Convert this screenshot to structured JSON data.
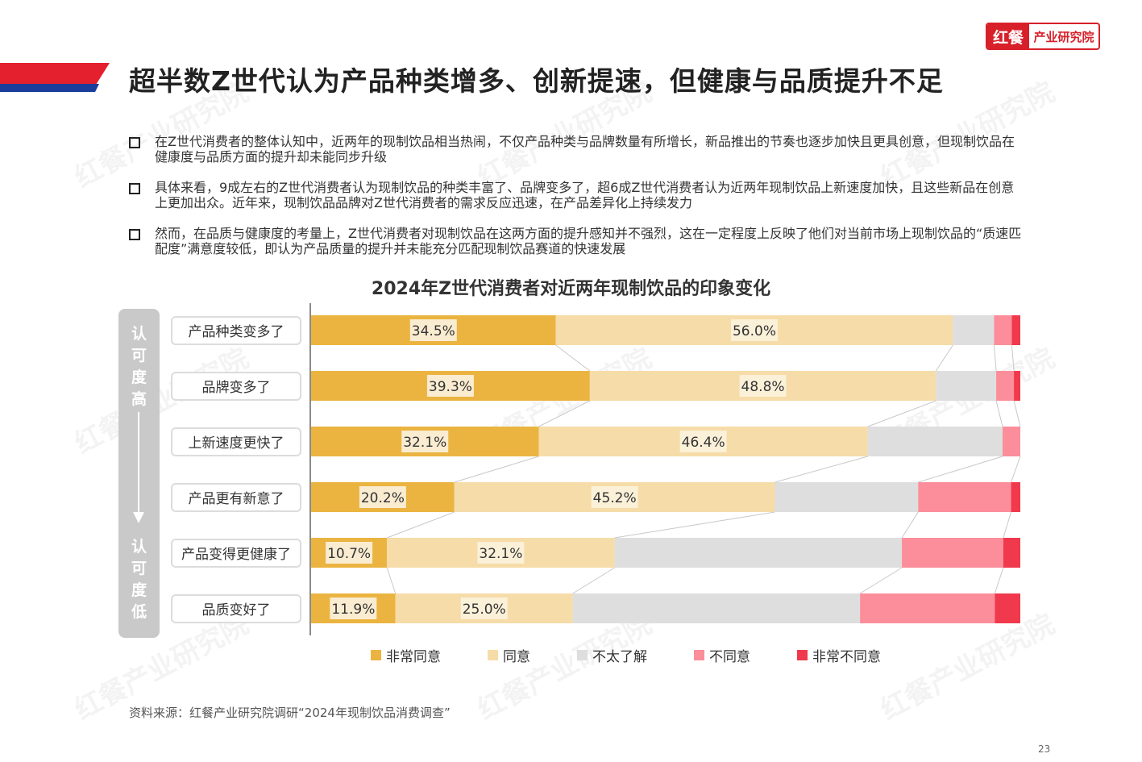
{
  "brand": {
    "logo_mark": "红餐",
    "logo_name": "产业研究院",
    "watermark": "红餐产业研究院",
    "accent_red": "#e5202e",
    "accent_blue": "#1a3d9c"
  },
  "title": "超半数Z世代认为产品种类增多、创新提速，但健康与品质提升不足",
  "bullets": [
    "在Z世代消费者的整体认知中，近两年的现制饮品相当热闹，不仅产品种类与品牌数量有所增长，新品推出的节奏也逐步加快且更具创意，但现制饮品在健康度与品质方面的提升却未能同步升级",
    "具体来看，9成左右的Z世代消费者认为现制饮品的种类丰富了、品牌变多了，超6成Z世代消费者认为近两年现制饮品上新速度加快，且这些新品在创意上更加出众。近年来，现制饮品品牌对Z世代消费者的需求反应迅速，在产品差异化上持续发力",
    "然而，在品质与健康度的考量上，Z世代消费者对现制饮品在这两方面的提升感知并不强烈，这在一定程度上反映了他们对当前市场上现制饮品的“质速匹配度”满意度较低，即认为产品质量的提升并未能充分匹配现制饮品赛道的快速发展"
  ],
  "side": {
    "top": "认可度高",
    "bottom": "认可度低"
  },
  "chart_data": {
    "type": "bar",
    "orientation": "horizontal",
    "stacked": true,
    "percent_stacked": true,
    "title": "2024年Z世代消费者对近两年现制饮品的印象变化",
    "categories": [
      "产品种类变多了",
      "品牌变多了",
      "上新速度更快了",
      "产品更有新意了",
      "产品变得更健康了",
      "品质变好了"
    ],
    "series": [
      {
        "name": "非常同意",
        "color": "#ebb441",
        "values": [
          34.5,
          39.3,
          32.1,
          20.2,
          10.7,
          11.9
        ],
        "labels": [
          "34.5%",
          "39.3%",
          "32.1%",
          "20.2%",
          "10.7%",
          "11.9%"
        ]
      },
      {
        "name": "同意",
        "color": "#f6dca8",
        "values": [
          56.0,
          48.8,
          46.4,
          45.2,
          32.1,
          25.0
        ],
        "labels": [
          "56.0%",
          "48.8%",
          "46.4%",
          "45.2%",
          "32.1%",
          "25.0%"
        ]
      },
      {
        "name": "不太了解",
        "color": "#dedede",
        "values": [
          5.8,
          8.5,
          19.0,
          20.2,
          40.5,
          40.5
        ]
      },
      {
        "name": "不同意",
        "color": "#fb8e9a",
        "values": [
          2.5,
          2.5,
          2.5,
          13.1,
          14.3,
          19.0
        ]
      },
      {
        "name": "非常不同意",
        "color": "#f0394c",
        "values": [
          1.2,
          0.9,
          0.0,
          1.3,
          2.4,
          3.6
        ]
      }
    ],
    "xlim": [
      0,
      100
    ]
  },
  "source": "资料来源：红餐产业研究院调研“2024年现制饮品消费调查”",
  "page_number": "23"
}
